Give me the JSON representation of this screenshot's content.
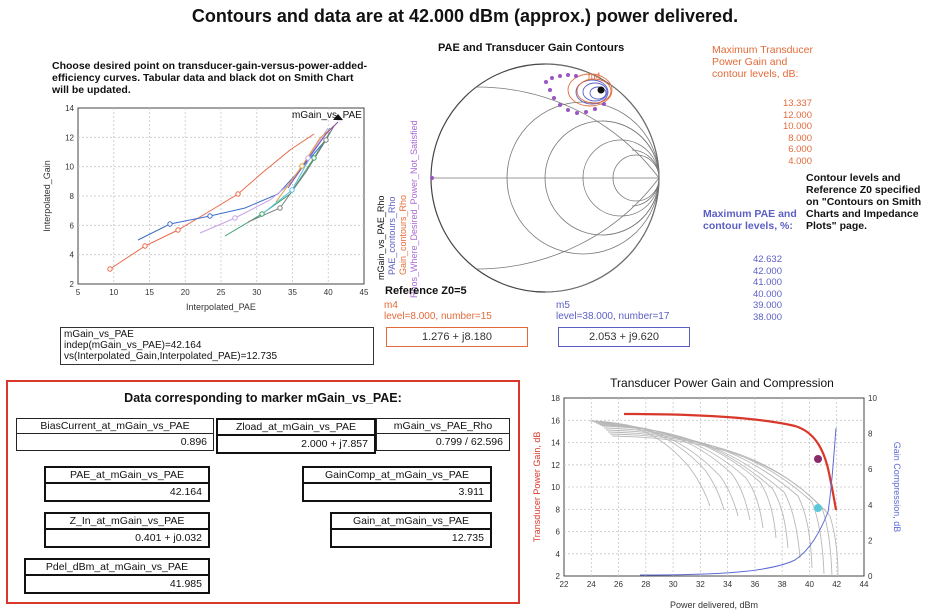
{
  "page": {
    "title": "Contours and data are at 42.000 dBm (approx.) power delivered."
  },
  "instructions": "Choose desired point on transducer-gain-versus-power-added-efficiency curves.  Tabular data and black dot on Smith Chart will be updated.",
  "gain_pae_plot": {
    "marker_label": "mGain_vs_PAE",
    "x_label": "Interpolated_PAE",
    "y_label": "Interpolated_Gain",
    "x_ticks": [
      "5",
      "10",
      "15",
      "20",
      "25",
      "30",
      "35",
      "40",
      "45"
    ],
    "y_ticks": [
      "2",
      "4",
      "6",
      "8",
      "10",
      "12",
      "14"
    ],
    "readout": {
      "line1": "mGain_vs_PAE",
      "line2": "indep(mGain_vs_PAE)=42.164",
      "line3": "vs(Interpolated_Gain,Interpolated_PAE)=12.735"
    }
  },
  "smith": {
    "title": "PAE and Transducer Gain Contours",
    "y_label_1": "mGain_vs_PAE_Rho",
    "y_label_2": "PAE_contours_Rho",
    "y_label_3": "Gain_contours_Rho",
    "y_label_4": "Rhos_Where_Desired_Power_Not_Satisfied",
    "m4_tag": "m4",
    "ref_label": "Reference Z0=5"
  },
  "gain_levels": {
    "heading": "Maximum Transducer Power Gain and contour levels, dB:",
    "values": [
      "13.337",
      "12.000",
      "10.000",
      "8.000",
      "6.000",
      "4.000"
    ]
  },
  "pae_levels": {
    "heading": "Maximum PAE and contour levels, %:",
    "values": [
      "42.632",
      "42.000",
      "41.000",
      "40.000",
      "39.000",
      "38.000"
    ]
  },
  "contour_note": "Contour levels and Reference Z0 specified on \"Contours on Smith Charts and Impedance Plots\" page.",
  "marker_m4": {
    "name": "m4",
    "info": "level=8.000, number=15",
    "value": "1.276 + j8.180",
    "color": "#e36b3a"
  },
  "marker_m5": {
    "name": "m5",
    "info": "level=38.000, number=17",
    "value": "2.053 + j9.620",
    "color": "#5b5fc4"
  },
  "data_panel": {
    "title": "Data corresponding to marker mGain_vs_PAE:",
    "bias_current": {
      "label": "BiasCurrent_at_mGain_vs_PAE",
      "value": "0.896"
    },
    "zload": {
      "label": "Zload_at_mGain_vs_PAE",
      "value": "2.000 + j7.857"
    },
    "rho": {
      "label": "mGain_vs_PAE_Rho",
      "value": "0.799 / 62.596"
    },
    "pae": {
      "label": "PAE_at_mGain_vs_PAE",
      "value": "42.164"
    },
    "gain_comp": {
      "label": "GainComp_at_mGain_vs_PAE",
      "value": "3.911"
    },
    "z_in": {
      "label": "Z_In_at_mGain_vs_PAE",
      "value": "0.401 + j0.032"
    },
    "gain": {
      "label": "Gain_at_mGain_vs_PAE",
      "value": "12.735"
    },
    "pdel": {
      "label": "Pdel_dBm_at_mGain_vs_PAE",
      "value": "41.985"
    }
  },
  "compression_plot": {
    "title": "Transducer Power Gain and Compression",
    "x_label": "Power delivered, dBm",
    "y_left_label": "Transducer Power Gain, dB",
    "y_right_label": "Gain Compression, dB",
    "x_ticks": [
      "22",
      "24",
      "26",
      "28",
      "30",
      "32",
      "34",
      "36",
      "38",
      "40",
      "42",
      "44"
    ],
    "y_left_ticks": [
      "2",
      "4",
      "6",
      "8",
      "10",
      "12",
      "14",
      "16",
      "18"
    ],
    "y_right_ticks": [
      "0",
      "2",
      "4",
      "6",
      "8",
      "10"
    ],
    "left_color": "#d9372a",
    "right_color": "#5b6bd4"
  }
}
